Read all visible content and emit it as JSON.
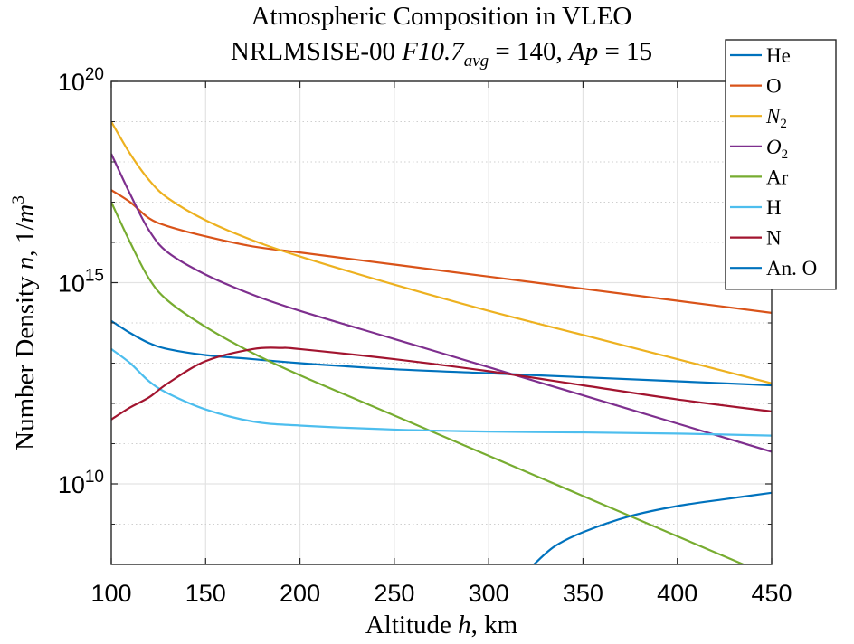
{
  "chart_data": {
    "type": "line",
    "title_line1": "Atmospheric Composition in VLEO",
    "title_line2_prefix": "NRLMSISE-00 ",
    "title_f107": "F10.7",
    "title_f107_sub": "avg",
    "title_f107_value": " = 140, ",
    "title_ap": "Ap",
    "title_ap_value": " = 15",
    "xlabel_prefix": "Altitude ",
    "xlabel_var": "h",
    "xlabel_suffix": ", km",
    "ylabel_prefix": "Number Density ",
    "ylabel_var": "n",
    "ylabel_mid": ", 1/",
    "ylabel_unit": "m",
    "ylabel_exp": "3",
    "xlim": [
      100,
      450
    ],
    "ylim_log10": [
      8,
      20
    ],
    "y_scale": "log",
    "grid": true,
    "legend_position": "top-right",
    "x_ticks": [
      100,
      150,
      200,
      250,
      300,
      350,
      400,
      450
    ],
    "y_major_ticks": [
      {
        "exp": 10,
        "base": "10",
        "sup": "10"
      },
      {
        "exp": 15,
        "base": "10",
        "sup": "15"
      },
      {
        "exp": 20,
        "base": "10",
        "sup": "20"
      }
    ],
    "y_minor_ticks_log10": [
      9,
      11,
      12,
      13,
      14,
      16,
      17,
      18,
      19
    ],
    "series": [
      {
        "name": "He",
        "label_main": "He",
        "label_sub": "",
        "italic": false,
        "color": "#0072BD",
        "x": [
          100,
          110,
          120,
          130,
          150,
          175,
          200,
          250,
          300,
          350,
          400,
          450
        ],
        "log10y": [
          14.05,
          13.75,
          13.5,
          13.35,
          13.2,
          13.1,
          13.0,
          12.85,
          12.75,
          12.65,
          12.55,
          12.45
        ]
      },
      {
        "name": "O",
        "label_main": "O",
        "label_sub": "",
        "italic": false,
        "color": "#D95319",
        "x": [
          100,
          110,
          120,
          130,
          150,
          175,
          200,
          250,
          300,
          350,
          400,
          450
        ],
        "log10y": [
          17.3,
          17.0,
          16.6,
          16.4,
          16.15,
          15.9,
          15.75,
          15.45,
          15.15,
          14.85,
          14.55,
          14.25
        ]
      },
      {
        "name": "N2",
        "label_main": "N",
        "label_sub": "2",
        "italic": true,
        "color": "#EDB120",
        "x": [
          100,
          110,
          120,
          130,
          150,
          175,
          200,
          250,
          300,
          350,
          400,
          450
        ],
        "log10y": [
          19.0,
          18.2,
          17.55,
          17.1,
          16.55,
          16.05,
          15.65,
          14.95,
          14.3,
          13.7,
          13.1,
          12.5
        ]
      },
      {
        "name": "O2",
        "label_main": "O",
        "label_sub": "2",
        "italic": true,
        "color": "#7E2F8E",
        "x": [
          100,
          110,
          120,
          130,
          150,
          175,
          200,
          250,
          300,
          350,
          400,
          450
        ],
        "log10y": [
          18.2,
          17.2,
          16.3,
          15.75,
          15.2,
          14.7,
          14.3,
          13.6,
          12.9,
          12.2,
          11.5,
          10.8
        ]
      },
      {
        "name": "Ar",
        "label_main": "Ar",
        "label_sub": "",
        "italic": false,
        "color": "#77AC30",
        "x": [
          100,
          110,
          120,
          130,
          150,
          175,
          200,
          250,
          300,
          350,
          400,
          450
        ],
        "log10y": [
          17.0,
          16.0,
          15.1,
          14.55,
          13.9,
          13.25,
          12.7,
          11.7,
          10.7,
          9.7,
          8.7,
          7.7
        ]
      },
      {
        "name": "H",
        "label_main": "H",
        "label_sub": "",
        "italic": false,
        "color": "#4DBEEE",
        "x": [
          100,
          110,
          120,
          130,
          150,
          175,
          200,
          250,
          300,
          350,
          400,
          450
        ],
        "log10y": [
          13.35,
          13.0,
          12.55,
          12.25,
          11.85,
          11.55,
          11.45,
          11.35,
          11.3,
          11.28,
          11.25,
          11.2
        ]
      },
      {
        "name": "N",
        "label_main": "N",
        "label_sub": "",
        "italic": false,
        "color": "#A2142F",
        "x": [
          100,
          110,
          120,
          130,
          150,
          175,
          190,
          200,
          250,
          300,
          350,
          400,
          450
        ],
        "log10y": [
          11.6,
          11.9,
          12.15,
          12.5,
          13.05,
          13.35,
          13.38,
          13.35,
          13.1,
          12.8,
          12.45,
          12.1,
          11.8
        ]
      },
      {
        "name": "An. O",
        "label_main": "An. O",
        "label_sub": "",
        "italic": false,
        "color": "#0072BD",
        "x": [
          324,
          335,
          350,
          375,
          400,
          425,
          450
        ],
        "log10y": [
          8.0,
          8.45,
          8.8,
          9.2,
          9.45,
          9.62,
          9.78
        ]
      }
    ]
  }
}
